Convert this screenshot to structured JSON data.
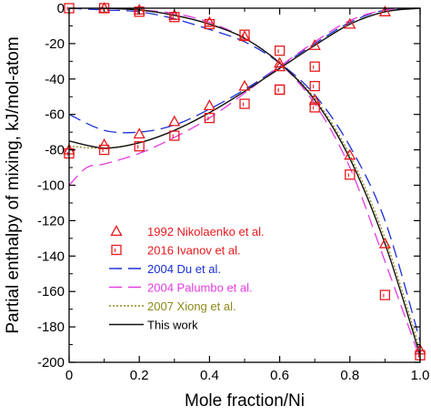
{
  "chart_data": {
    "type": "line",
    "title": "",
    "xlabel": "Mole fraction/Ni",
    "ylabel": "Partial enthalpy of mixing, kJ/mol-atom",
    "xlim": [
      0,
      1
    ],
    "ylim": [
      -200,
      0
    ],
    "xticks": [
      0,
      0.2,
      0.4,
      0.6,
      0.8,
      1.0
    ],
    "xtick_labels": [
      "0",
      "0.2",
      "0.4",
      "0.6",
      "0.8",
      "1.0"
    ],
    "yticks": [
      0,
      -20,
      -40,
      -60,
      -80,
      -100,
      -120,
      -140,
      -160,
      -180,
      -200
    ],
    "ytick_labels": [
      "0",
      "-20",
      "-40",
      "-60",
      "-80",
      "-100",
      "-120",
      "-140",
      "-160",
      "-180",
      "-200"
    ],
    "grid": false,
    "legend_position": "lower-left",
    "series": [
      {
        "name": "1992 Nikolaenko et al.",
        "kind": "markers",
        "marker": "triangle",
        "color": "#e8191d",
        "x": [
          0.0,
          0.1,
          0.2,
          0.3,
          0.4,
          0.5,
          0.6,
          0.7,
          0.8,
          0.9,
          0.1,
          0.2,
          0.3,
          0.4,
          0.5,
          0.6,
          0.7,
          0.8,
          0.9,
          1.0
        ],
        "y": [
          -80,
          -77,
          -71,
          -64,
          -55,
          -44,
          -33,
          -21,
          -9,
          -2,
          0,
          -1,
          -4,
          -8,
          -16,
          -31,
          -52,
          -83,
          -133,
          -193
        ]
      },
      {
        "name": "2016 Ivanov et al.",
        "kind": "markers",
        "marker": "square",
        "color": "#e8191d",
        "x": [
          0.0,
          0.1,
          0.2,
          0.3,
          0.4,
          0.5,
          0.6,
          0.7,
          0.0,
          0.1,
          0.2,
          0.3,
          0.4,
          0.5,
          0.6,
          0.6,
          0.7,
          0.7,
          0.8,
          0.9,
          1.0
        ],
        "y": [
          -82,
          -80,
          -78,
          -72,
          -62,
          -54,
          -46,
          -33,
          0,
          0,
          -2,
          -5,
          -9,
          -15,
          -24,
          -46,
          -44,
          -56,
          -94,
          -162,
          -196
        ]
      },
      {
        "name": "2004 Du et al.",
        "kind": "line",
        "style": "dashed",
        "color": "#1b2fd6",
        "x": [
          0,
          0.1,
          0.2,
          0.3,
          0.4,
          0.5,
          0.6,
          0.7,
          0.8,
          0.9,
          1.0
        ],
        "y": [
          -60,
          -69,
          -70,
          -66,
          -57,
          -46,
          -33,
          -20,
          -8,
          -1,
          0
        ],
        "x2": [
          0,
          0.1,
          0.2,
          0.3,
          0.4,
          0.5,
          0.6,
          0.7,
          0.8,
          0.9,
          1.0
        ],
        "y2": [
          0,
          -1,
          -2,
          -6,
          -12,
          -19,
          -31,
          -49,
          -78,
          -120,
          -188
        ]
      },
      {
        "name": "2004 Palumbo et al.",
        "kind": "line",
        "style": "dashed",
        "color": "#e23de0",
        "x": [
          0,
          0.05,
          0.1,
          0.2,
          0.3,
          0.4,
          0.5,
          0.6,
          0.7,
          0.8,
          0.9,
          1.0
        ],
        "y": [
          -100,
          -90,
          -88,
          -82,
          -73,
          -62,
          -48,
          -33,
          -19,
          -7,
          -1,
          0
        ],
        "x2": [
          0,
          0.1,
          0.2,
          0.3,
          0.4,
          0.5,
          0.6,
          0.7,
          0.8,
          0.9,
          1.0
        ],
        "y2": [
          0,
          0,
          -1,
          -3,
          -8,
          -17,
          -31,
          -54,
          -90,
          -143,
          -198
        ]
      },
      {
        "name": "2007 Xiong et al.",
        "kind": "line",
        "style": "dotted",
        "color": "#8c8a1a",
        "x": [
          0,
          0.1,
          0.2,
          0.3,
          0.4,
          0.5,
          0.6,
          0.7,
          0.8,
          0.9,
          1.0
        ],
        "y": [
          -78,
          -79,
          -76,
          -69,
          -59,
          -47,
          -34,
          -21,
          -9,
          -2,
          0
        ],
        "x2": [
          0,
          0.1,
          0.2,
          0.3,
          0.4,
          0.5,
          0.6,
          0.7,
          0.8,
          0.9,
          1.0
        ],
        "y2": [
          0,
          0,
          -1,
          -4,
          -9,
          -17,
          -31,
          -51,
          -83,
          -130,
          -193
        ]
      },
      {
        "name": "This work",
        "kind": "line",
        "style": "solid",
        "color": "#111111",
        "x": [
          0,
          0.1,
          0.2,
          0.3,
          0.4,
          0.5,
          0.6,
          0.7,
          0.8,
          0.9,
          1.0
        ],
        "y": [
          -75,
          -79,
          -76,
          -69,
          -59,
          -47,
          -34,
          -21,
          -9,
          -2,
          0
        ],
        "x2": [
          0,
          0.1,
          0.2,
          0.3,
          0.4,
          0.5,
          0.6,
          0.7,
          0.8,
          0.9,
          1.0
        ],
        "y2": [
          0,
          0,
          -1,
          -4,
          -9,
          -17,
          -31,
          -52,
          -85,
          -133,
          -196
        ]
      }
    ]
  }
}
